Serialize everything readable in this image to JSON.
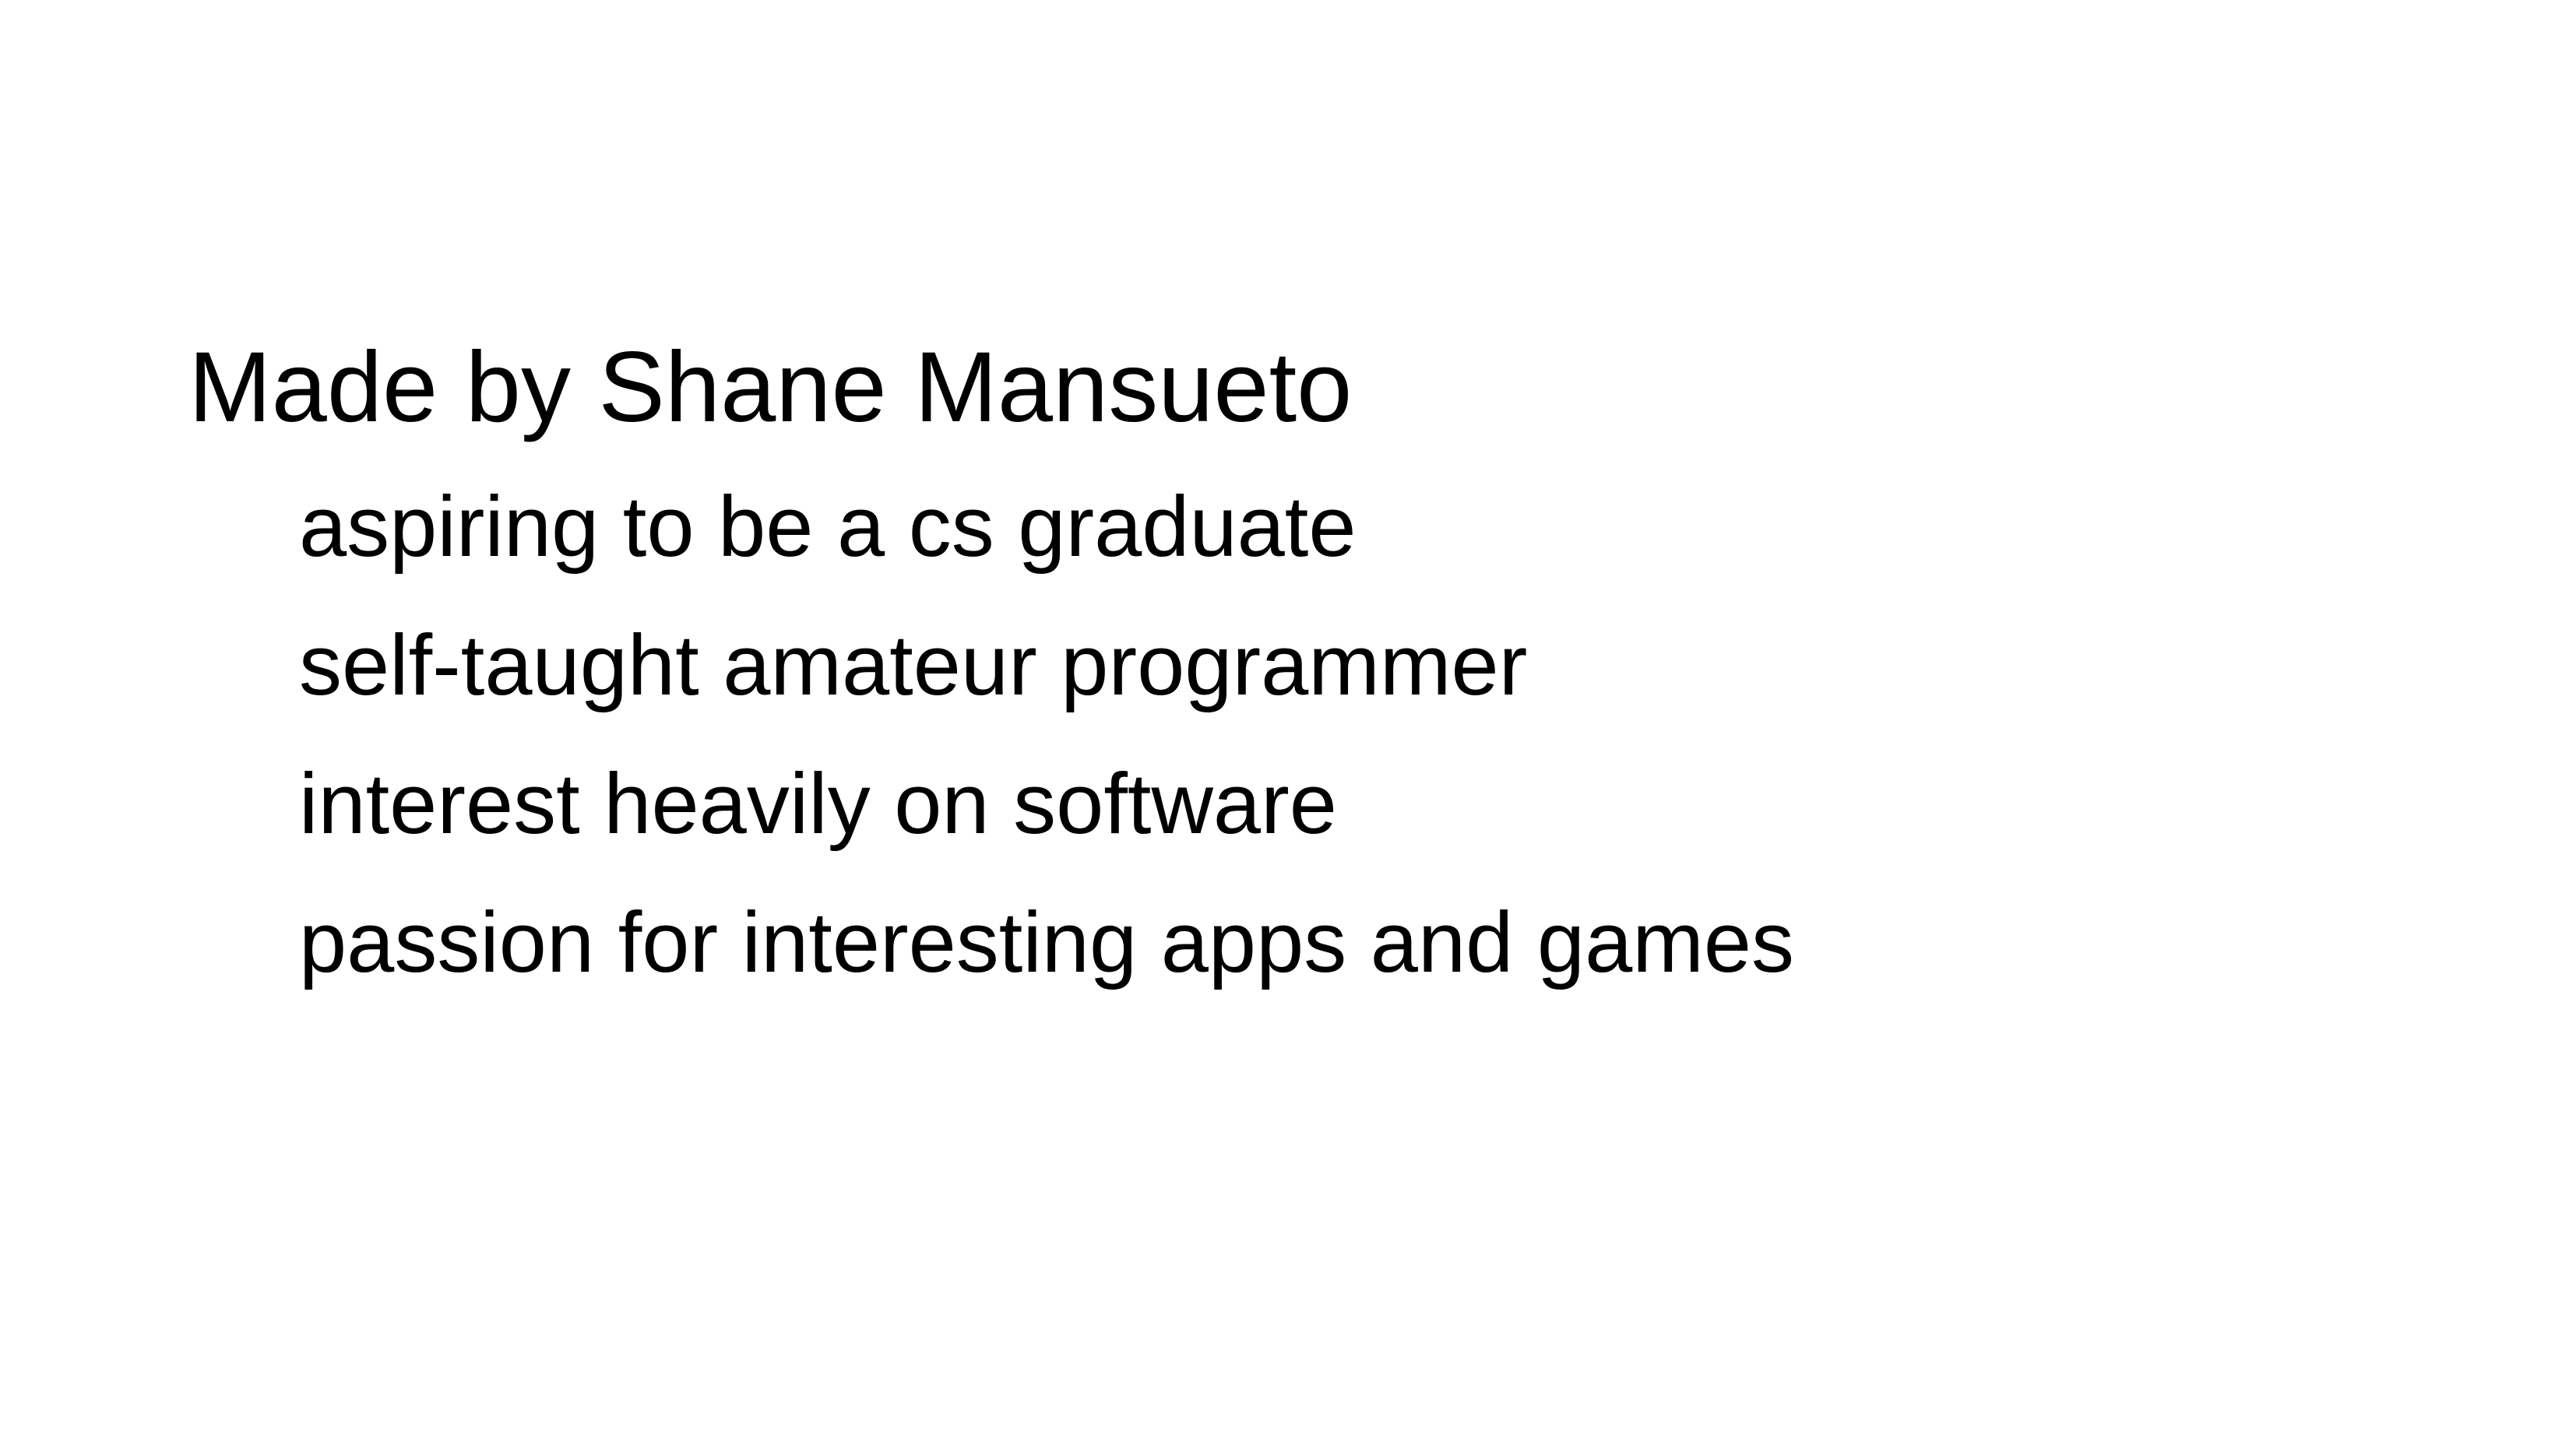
{
  "slide": {
    "title": "Made by Shane Mansueto",
    "points": [
      "aspiring to be a cs graduate",
      "self-taught amateur programmer",
      "interest heavily on software",
      "passion for interesting apps and games"
    ]
  },
  "colors": {
    "background": "#ffffff",
    "text": "#000000"
  }
}
